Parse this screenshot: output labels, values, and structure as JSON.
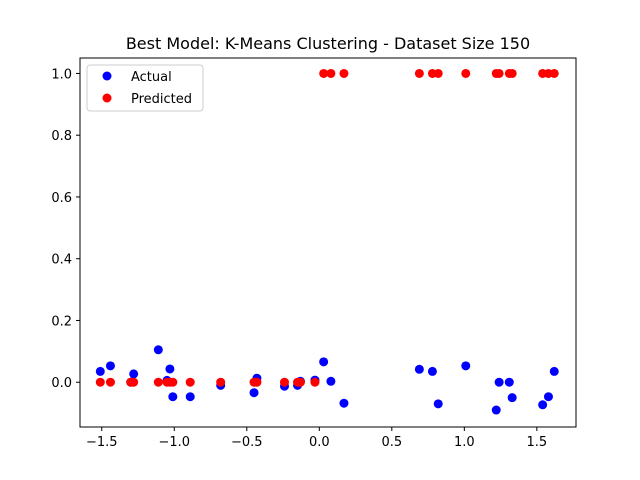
{
  "chart_data": {
    "type": "scatter",
    "title": "Best Model: K-Means Clustering - Dataset Size 150",
    "xlabel": "",
    "ylabel": "",
    "xlim": [
      -1.65,
      1.77
    ],
    "ylim": [
      -0.145,
      1.05
    ],
    "xticks": [
      -1.5,
      -1.0,
      -0.5,
      0.0,
      0.5,
      1.0,
      1.5
    ],
    "xtick_labels": [
      "−1.5",
      "−1.0",
      "−0.5",
      "0.0",
      "0.5",
      "1.0",
      "1.5"
    ],
    "yticks": [
      0.0,
      0.2,
      0.4,
      0.6,
      0.8,
      1.0
    ],
    "ytick_labels": [
      "0.0",
      "0.2",
      "0.4",
      "0.6",
      "0.8",
      "1.0"
    ],
    "grid": false,
    "legend": "upper-left",
    "series": [
      {
        "name": "Actual",
        "color": "#0000ff",
        "points": [
          [
            -1.51,
            0.035
          ],
          [
            -1.44,
            0.053
          ],
          [
            -1.3,
            0.0
          ],
          [
            -1.28,
            0.027
          ],
          [
            -1.11,
            0.105
          ],
          [
            -1.05,
            0.006
          ],
          [
            -1.03,
            0.043
          ],
          [
            -1.01,
            -0.047
          ],
          [
            -0.89,
            -0.047
          ],
          [
            -0.68,
            -0.01
          ],
          [
            -0.45,
            -0.034
          ],
          [
            -0.43,
            0.013
          ],
          [
            -0.24,
            -0.013
          ],
          [
            -0.15,
            -0.01
          ],
          [
            -0.13,
            0.003
          ],
          [
            -0.03,
            0.007
          ],
          [
            0.03,
            0.066
          ],
          [
            0.08,
            0.003
          ],
          [
            0.17,
            -0.068
          ],
          [
            0.69,
            0.042
          ],
          [
            0.78,
            0.035
          ],
          [
            0.82,
            -0.07
          ],
          [
            1.01,
            0.053
          ],
          [
            1.22,
            -0.09
          ],
          [
            1.24,
            0.0
          ],
          [
            1.31,
            0.0
          ],
          [
            1.33,
            -0.05
          ],
          [
            1.54,
            -0.073
          ],
          [
            1.58,
            -0.047
          ],
          [
            1.62,
            0.035
          ]
        ]
      },
      {
        "name": "Predicted",
        "color": "#ff0000",
        "points": [
          [
            -1.51,
            0
          ],
          [
            -1.44,
            0
          ],
          [
            -1.3,
            0
          ],
          [
            -1.28,
            0
          ],
          [
            -1.11,
            0
          ],
          [
            -1.05,
            0
          ],
          [
            -1.03,
            0
          ],
          [
            -1.01,
            0
          ],
          [
            -0.89,
            0
          ],
          [
            -0.68,
            0
          ],
          [
            -0.45,
            0
          ],
          [
            -0.43,
            0
          ],
          [
            -0.24,
            0
          ],
          [
            -0.15,
            0
          ],
          [
            -0.13,
            0
          ],
          [
            -0.03,
            0
          ],
          [
            0.03,
            1
          ],
          [
            0.08,
            1
          ],
          [
            0.17,
            1
          ],
          [
            0.69,
            1
          ],
          [
            0.78,
            1
          ],
          [
            0.82,
            1
          ],
          [
            1.01,
            1
          ],
          [
            1.22,
            1
          ],
          [
            1.24,
            1
          ],
          [
            1.31,
            1
          ],
          [
            1.33,
            1
          ],
          [
            1.54,
            1
          ],
          [
            1.58,
            1
          ],
          [
            1.62,
            1
          ]
        ]
      }
    ]
  }
}
